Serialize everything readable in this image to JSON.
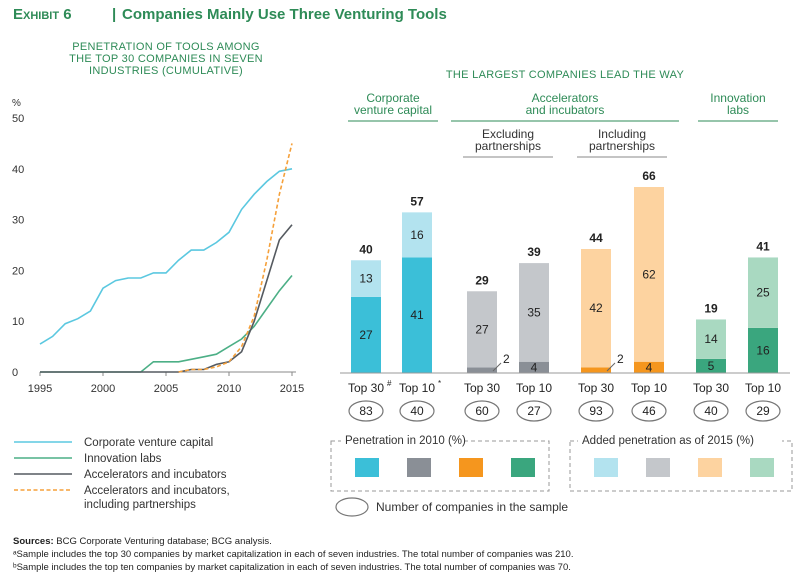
{
  "exhibit": {
    "label": "Exhibit 6",
    "separator": "|",
    "title": "Companies Mainly Use Three Venturing Tools"
  },
  "left_panel": {
    "title_lines": [
      "PENETRATION OF TOOLS AMONG",
      "THE TOP 30 COMPANIES IN SEVEN",
      "INDUSTRIES (CUMULATIVE)"
    ],
    "y_unit": "%"
  },
  "right_panel": {
    "title": "THE LARGEST COMPANIES LEAD THE WAY",
    "group_headers": [
      {
        "lines": [
          "Corporate",
          "venture capital"
        ]
      },
      {
        "lines": [
          "Accelerators",
          "and incubators"
        ]
      },
      {
        "lines": [
          "Innovation",
          "labs"
        ]
      }
    ],
    "sub_headers": [
      {
        "lines": [
          "Excluding",
          "partnerships"
        ]
      },
      {
        "lines": [
          "Including",
          "partnerships"
        ]
      }
    ]
  },
  "legend_lines": [
    {
      "label": "Corporate venture capital",
      "color": "#5bc8e0",
      "dashed": false
    },
    {
      "label": "Innovation labs",
      "color": "#4caf86",
      "dashed": false
    },
    {
      "label": "Accelerators and incubators",
      "color": "#555a60",
      "dashed": false
    },
    {
      "label": "Accelerators and incubators,",
      "label2": "including partnerships",
      "color": "#f5a03a",
      "dashed": true
    }
  ],
  "legend_boxes": {
    "penetration_2010": "Penetration in 2010 (%)",
    "added_2015": "Added penetration as of 2015 (%)",
    "colors_2010": [
      "#3bbfd8",
      "#8a8f96",
      "#f5961e",
      "#3aa67e"
    ],
    "colors_added": [
      "#b3e3ef",
      "#c4c7cb",
      "#fdd3a0",
      "#a9d9c1"
    ],
    "sample_label": "Number of companies in the sample"
  },
  "sources": {
    "bold": "Sources:",
    "text": " BCG Corporate Venturing database; BCG analysis.",
    "note1": "ᵃSample includes the top 30 companies by market capitalization in each of seven industries. The total number of companies was 210.",
    "note2": "ᵇSample includes the top ten companies by market capitalization in each of seven industries. The total number of companies was 70."
  },
  "chart_data": [
    {
      "type": "line",
      "title": "PENETRATION OF TOOLS AMONG THE TOP 30 COMPANIES IN SEVEN INDUSTRIES (CUMULATIVE)",
      "ylabel": "%",
      "xlim": [
        1995,
        2015
      ],
      "ylim": [
        0,
        50
      ],
      "x_ticks": [
        1995,
        2000,
        2005,
        2010,
        2015
      ],
      "y_ticks": [
        0,
        10,
        20,
        30,
        40,
        50
      ],
      "grid": false,
      "series": [
        {
          "name": "Corporate venture capital",
          "color": "#5bc8e0",
          "dashed": false,
          "points": [
            [
              1995,
              5.5
            ],
            [
              1996,
              7
            ],
            [
              1997,
              9.5
            ],
            [
              1998,
              10.5
            ],
            [
              1999,
              12
            ],
            [
              2000,
              16.5
            ],
            [
              2001,
              18
            ],
            [
              2002,
              18.5
            ],
            [
              2003,
              18.5
            ],
            [
              2004,
              19.5
            ],
            [
              2005,
              19.5
            ],
            [
              2006,
              22
            ],
            [
              2007,
              24
            ],
            [
              2008,
              24
            ],
            [
              2009,
              25.5
            ],
            [
              2010,
              27.5
            ],
            [
              2011,
              32
            ],
            [
              2012,
              35
            ],
            [
              2013,
              37.5
            ],
            [
              2014,
              39.5
            ],
            [
              2015,
              40
            ]
          ]
        },
        {
          "name": "Innovation labs",
          "color": "#4caf86",
          "dashed": false,
          "points": [
            [
              1995,
              0
            ],
            [
              2003,
              0
            ],
            [
              2004,
              2
            ],
            [
              2005,
              2
            ],
            [
              2006,
              2
            ],
            [
              2007,
              2.5
            ],
            [
              2008,
              3
            ],
            [
              2009,
              3.5
            ],
            [
              2010,
              5
            ],
            [
              2011,
              6.5
            ],
            [
              2012,
              9
            ],
            [
              2013,
              12.5
            ],
            [
              2014,
              16
            ],
            [
              2015,
              19
            ]
          ]
        },
        {
          "name": "Accelerators and incubators",
          "color": "#555a60",
          "dashed": false,
          "points": [
            [
              1995,
              0
            ],
            [
              2006,
              0
            ],
            [
              2007,
              0.5
            ],
            [
              2008,
              0.5
            ],
            [
              2009,
              1.5
            ],
            [
              2010,
              2
            ],
            [
              2011,
              4
            ],
            [
              2012,
              10
            ],
            [
              2013,
              18
            ],
            [
              2014,
              26
            ],
            [
              2015,
              29
            ]
          ]
        },
        {
          "name": "Accelerators and incubators, including partnerships",
          "color": "#f5a03a",
          "dashed": true,
          "points": [
            [
              2006,
              0
            ],
            [
              2007,
              0.5
            ],
            [
              2008,
              0.5
            ],
            [
              2009,
              1
            ],
            [
              2010,
              2
            ],
            [
              2011,
              5
            ],
            [
              2012,
              11
            ],
            [
              2013,
              22
            ],
            [
              2014,
              35
            ],
            [
              2015,
              45
            ]
          ]
        }
      ]
    },
    {
      "type": "bar",
      "stacked": true,
      "title": "THE LARGEST COMPANIES LEAD THE WAY",
      "ylim": [
        0,
        70
      ],
      "categories": [
        "Top 30ᵃ",
        "Top 10ᵇ",
        "Top 30",
        "Top 10",
        "Top 30",
        "Top 10",
        "Top 30",
        "Top 10"
      ],
      "groups": [
        "Corporate venture capital",
        "Accelerators and incubators, excluding partnerships",
        "Accelerators and incubators, including partnerships",
        "Innovation labs"
      ],
      "series": [
        {
          "name": "Penetration in 2010 (%)",
          "values": [
            27,
            41,
            2,
            4,
            2,
            4,
            5,
            16
          ]
        },
        {
          "name": "Added penetration as of 2015 (%)",
          "values": [
            13,
            16,
            27,
            35,
            42,
            62,
            14,
            25
          ]
        }
      ],
      "totals": [
        40,
        57,
        29,
        39,
        44,
        66,
        19,
        41
      ],
      "sample_sizes": [
        83,
        40,
        60,
        27,
        93,
        46,
        40,
        29
      ],
      "bottom_label_2010_hidden_on_bar": [
        false,
        false,
        true,
        false,
        true,
        false,
        false,
        false
      ],
      "colors_2010": [
        "#3bbfd8",
        "#3bbfd8",
        "#8a8f96",
        "#8a8f96",
        "#f5961e",
        "#f5961e",
        "#3aa67e",
        "#3aa67e"
      ],
      "colors_added": [
        "#b3e3ef",
        "#b3e3ef",
        "#c4c7cb",
        "#c4c7cb",
        "#fdd3a0",
        "#fdd3a0",
        "#a9d9c1",
        "#a9d9c1"
      ]
    }
  ]
}
